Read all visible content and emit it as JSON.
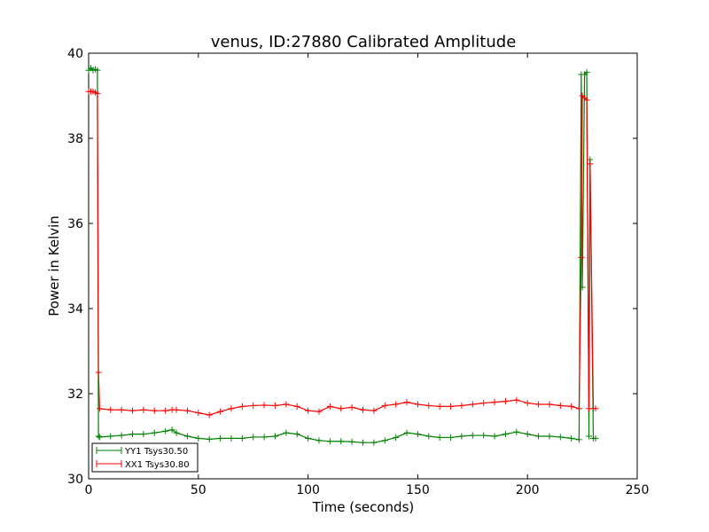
{
  "chart_data": {
    "type": "line",
    "title": "venus, ID:27880 Calibrated Amplitude",
    "xlabel": "Time (seconds)",
    "ylabel": "Power in Kelvin",
    "xlim": [
      0,
      250
    ],
    "ylim": [
      30,
      40
    ],
    "xticks": [
      "0",
      "50",
      "100",
      "150",
      "200",
      "250"
    ],
    "yticks": [
      "30",
      "32",
      "34",
      "36",
      "38",
      "40"
    ],
    "grid": false,
    "legend_position": "lower-left",
    "series": [
      {
        "name": "YY1 Tsys30.50",
        "color": "#008000",
        "x": [
          0,
          1,
          2,
          3,
          4,
          4.5,
          5,
          10,
          15,
          20,
          25,
          30,
          35,
          38,
          40,
          45,
          50,
          55,
          60,
          65,
          70,
          75,
          80,
          85,
          90,
          95,
          100,
          105,
          110,
          115,
          120,
          125,
          130,
          135,
          140,
          145,
          150,
          155,
          160,
          165,
          170,
          175,
          180,
          185,
          190,
          195,
          200,
          205,
          210,
          215,
          220,
          223.5,
          224.5,
          225,
          226,
          227,
          228,
          228.5,
          230,
          231
        ],
        "y": [
          39.6,
          39.65,
          39.6,
          39.62,
          39.6,
          31.0,
          30.98,
          31.0,
          31.02,
          31.05,
          31.05,
          31.08,
          31.12,
          31.15,
          31.08,
          31.0,
          30.95,
          30.93,
          30.95,
          30.95,
          30.95,
          30.98,
          30.98,
          31.0,
          31.08,
          31.05,
          30.95,
          30.9,
          30.88,
          30.88,
          30.87,
          30.85,
          30.85,
          30.9,
          30.97,
          31.08,
          31.05,
          31.0,
          30.97,
          30.97,
          31.0,
          31.02,
          31.02,
          31.0,
          31.05,
          31.1,
          31.05,
          31.0,
          31.0,
          30.98,
          30.95,
          30.92,
          39.5,
          34.5,
          39.5,
          39.55,
          31.0,
          37.5,
          30.95,
          30.95
        ]
      },
      {
        "name": "XX1 Tsys30.80",
        "color": "#ff0000",
        "x": [
          0,
          1,
          2,
          3,
          4,
          4.5,
          5,
          10,
          15,
          20,
          25,
          30,
          35,
          38,
          40,
          45,
          50,
          55,
          60,
          65,
          70,
          75,
          80,
          85,
          90,
          95,
          100,
          105,
          110,
          115,
          120,
          125,
          130,
          135,
          140,
          145,
          150,
          155,
          160,
          165,
          170,
          175,
          180,
          185,
          190,
          195,
          200,
          205,
          210,
          215,
          220,
          223.5,
          224.5,
          225,
          226,
          227,
          228,
          228.5,
          230,
          231
        ],
        "y": [
          39.1,
          39.1,
          39.1,
          39.08,
          39.05,
          32.5,
          31.65,
          31.62,
          31.62,
          31.6,
          31.62,
          31.6,
          31.6,
          31.62,
          31.62,
          31.6,
          31.55,
          31.5,
          31.58,
          31.65,
          31.7,
          31.72,
          31.73,
          31.72,
          31.75,
          31.7,
          31.6,
          31.58,
          31.7,
          31.65,
          31.68,
          31.62,
          31.6,
          31.72,
          31.75,
          31.8,
          31.75,
          31.72,
          31.7,
          31.7,
          31.72,
          31.75,
          31.78,
          31.8,
          31.82,
          31.85,
          31.78,
          31.75,
          31.75,
          31.72,
          31.7,
          31.65,
          35.2,
          39.0,
          38.95,
          38.9,
          31.65,
          37.4,
          31.65,
          31.65
        ]
      }
    ]
  }
}
